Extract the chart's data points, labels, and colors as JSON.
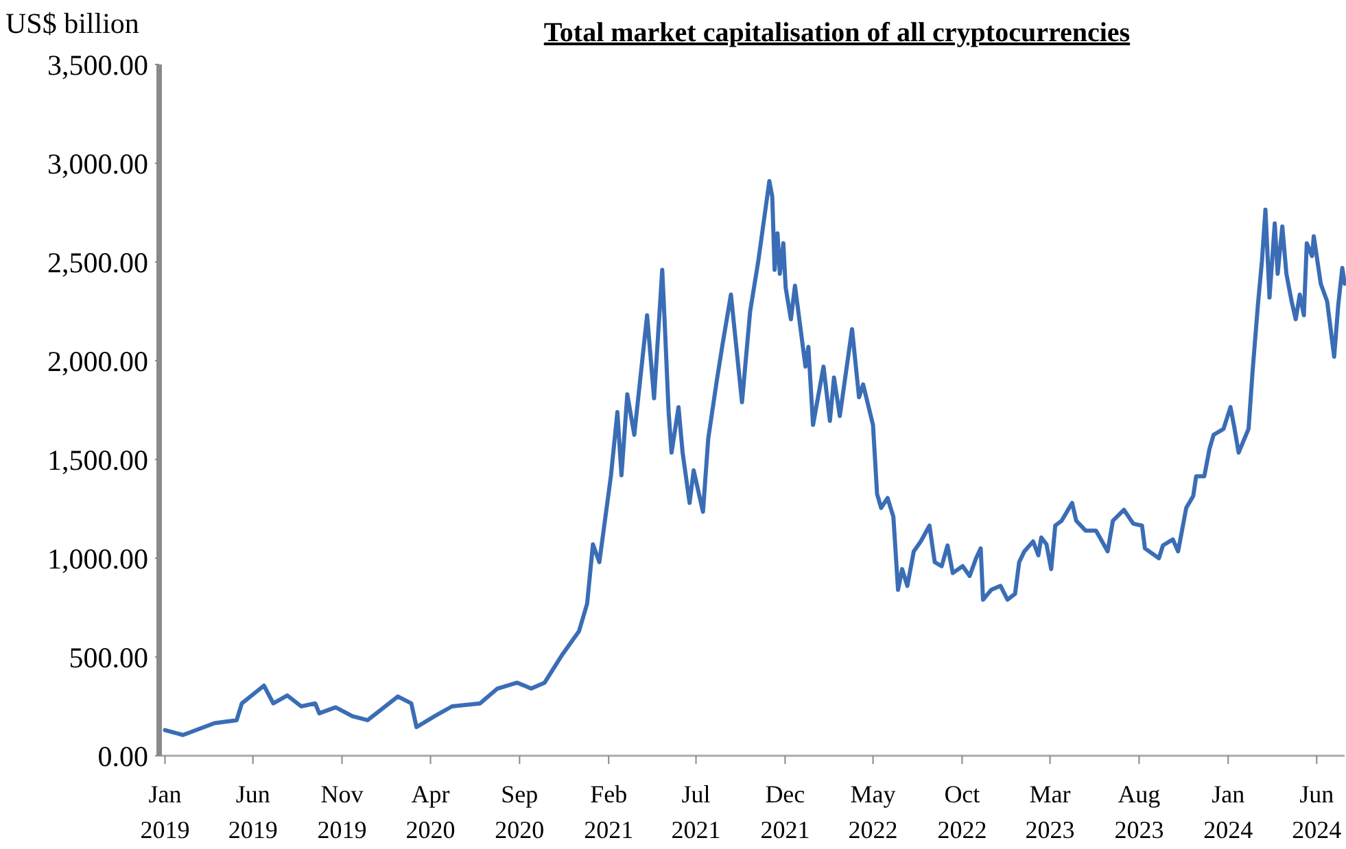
{
  "chart_data": {
    "type": "line",
    "title": "Total market capitalisation of all cryptocurrencies",
    "ylabel": "US$ billion",
    "x": [
      "2019-01-01",
      "2019-02-01",
      "2019-03-27",
      "2019-05-04",
      "2019-05-13",
      "2019-06-20",
      "2019-07-06",
      "2019-07-30",
      "2019-08-23",
      "2019-09-16",
      "2019-09-23",
      "2019-10-21",
      "2019-11-19",
      "2019-12-15",
      "2020-02-05",
      "2020-02-28",
      "2020-03-08",
      "2020-04-08",
      "2020-05-08",
      "2020-06-25",
      "2020-07-25",
      "2020-08-28",
      "2020-09-21",
      "2020-10-14",
      "2020-11-14",
      "2020-12-12",
      "2020-12-26",
      "2021-01-05",
      "2021-01-16",
      "2021-02-05",
      "2021-02-16",
      "2021-02-23",
      "2021-03-05",
      "2021-03-17",
      "2021-04-08",
      "2021-04-20",
      "2021-05-04",
      "2021-05-08",
      "2021-05-15",
      "2021-05-20",
      "2021-06-01",
      "2021-06-08",
      "2021-06-20",
      "2021-06-27",
      "2021-07-13",
      "2021-07-22",
      "2021-08-06",
      "2021-08-16",
      "2021-08-30",
      "2021-09-18",
      "2021-10-02",
      "2021-10-16",
      "2021-11-04",
      "2021-11-09",
      "2021-11-13",
      "2021-11-18",
      "2021-11-22",
      "2021-11-28",
      "2021-12-02",
      "2021-12-11",
      "2021-12-18",
      "2022-01-05",
      "2022-01-10",
      "2022-01-18",
      "2022-02-05",
      "2022-02-16",
      "2022-02-23",
      "2022-03-05",
      "2022-03-26",
      "2022-04-07",
      "2022-04-14",
      "2022-05-01",
      "2022-05-08",
      "2022-05-15",
      "2022-05-26",
      "2022-06-05",
      "2022-06-13",
      "2022-06-20",
      "2022-06-29",
      "2022-07-10",
      "2022-07-22",
      "2022-08-06",
      "2022-08-15",
      "2022-08-27",
      "2022-09-06",
      "2022-09-15",
      "2022-10-02",
      "2022-10-14",
      "2022-10-25",
      "2022-11-02",
      "2022-11-06",
      "2022-11-20",
      "2022-12-06",
      "2022-12-18",
      "2022-12-31",
      "2023-01-07",
      "2023-01-16",
      "2023-01-31",
      "2023-02-09",
      "2023-02-14",
      "2023-02-23",
      "2023-03-03",
      "2023-03-10",
      "2023-03-21",
      "2023-04-08",
      "2023-04-15",
      "2023-05-01",
      "2023-05-19",
      "2023-06-08",
      "2023-06-17",
      "2023-07-06",
      "2023-07-22",
      "2023-08-06",
      "2023-08-11",
      "2023-09-04",
      "2023-09-11",
      "2023-09-28",
      "2023-10-07",
      "2023-10-21",
      "2023-11-02",
      "2023-11-07",
      "2023-11-21",
      "2023-11-30",
      "2023-12-07",
      "2023-12-24",
      "2024-01-05",
      "2024-01-12",
      "2024-01-19",
      "2024-02-05",
      "2024-02-12",
      "2024-02-21",
      "2024-02-28",
      "2024-03-05",
      "2024-03-12",
      "2024-03-21",
      "2024-03-26",
      "2024-04-03",
      "2024-04-10",
      "2024-04-19",
      "2024-04-26",
      "2024-05-03",
      "2024-05-10",
      "2024-05-15",
      "2024-05-24",
      "2024-05-27",
      "2024-06-08",
      "2024-06-19",
      "2024-07-01",
      "2024-07-08",
      "2024-07-15",
      "2024-07-19"
    ],
    "series": [
      {
        "color": "#3a6db5",
        "values": [
          130,
          105,
          165,
          180,
          265,
          355,
          265,
          305,
          250,
          265,
          215,
          245,
          200,
          180,
          300,
          265,
          145,
          200,
          250,
          265,
          340,
          370,
          340,
          370,
          515,
          630,
          770,
          1070,
          980,
          1420,
          1740,
          1420,
          1830,
          1625,
          2230,
          1810,
          2460,
          2210,
          1740,
          1535,
          1765,
          1535,
          1280,
          1445,
          1235,
          1605,
          1905,
          2090,
          2335,
          1790,
          2250,
          2505,
          2910,
          2830,
          2460,
          2645,
          2440,
          2595,
          2370,
          2210,
          2380,
          1970,
          2070,
          1675,
          1970,
          1695,
          1915,
          1720,
          2160,
          1815,
          1880,
          1675,
          1325,
          1255,
          1305,
          1210,
          840,
          945,
          860,
          1035,
          1085,
          1165,
          980,
          960,
          1065,
          925,
          960,
          910,
          1000,
          1050,
          790,
          840,
          860,
          790,
          820,
          980,
          1035,
          1085,
          1015,
          1105,
          1070,
          945,
          1165,
          1190,
          1280,
          1190,
          1140,
          1140,
          1035,
          1190,
          1245,
          1175,
          1165,
          1050,
          1000,
          1065,
          1095,
          1035,
          1255,
          1315,
          1415,
          1415,
          1555,
          1625,
          1655,
          1765,
          1655,
          1535,
          1655,
          1950,
          2280,
          2505,
          2765,
          2320,
          2695,
          2440,
          2680,
          2440,
          2300,
          2210,
          2335,
          2230,
          2595,
          2530,
          2630,
          2390,
          2300,
          2020,
          2280,
          2470,
          2390
        ]
      }
    ],
    "xlim": [
      "2018-12-22",
      "2024-07-19"
    ],
    "xticks": [
      {
        "value": "2019-01",
        "label": "Jan 2019"
      },
      {
        "value": "2019-06",
        "label": "Jun 2019"
      },
      {
        "value": "2019-11",
        "label": "Nov 2019"
      },
      {
        "value": "2020-04",
        "label": "Apr 2020"
      },
      {
        "value": "2020-09",
        "label": "Sep 2020"
      },
      {
        "value": "2021-02",
        "label": "Feb 2021"
      },
      {
        "value": "2021-07",
        "label": "Jul 2021"
      },
      {
        "value": "2021-12",
        "label": "Dec 2021"
      },
      {
        "value": "2022-05",
        "label": "May 2022"
      },
      {
        "value": "2022-10",
        "label": "Oct 2022"
      },
      {
        "value": "2023-03",
        "label": "Mar 2023"
      },
      {
        "value": "2023-08",
        "label": "Aug 2023"
      },
      {
        "value": "2024-01",
        "label": "Jan 2024"
      },
      {
        "value": "2024-06",
        "label": "Jun 2024"
      }
    ],
    "ylim": [
      0,
      3500
    ],
    "yticks": [
      {
        "value": 0,
        "label": "0.00"
      },
      {
        "value": 500,
        "label": "500.00"
      },
      {
        "value": 1000,
        "label": "1,000.00"
      },
      {
        "value": 1500,
        "label": "1,500.00"
      },
      {
        "value": 2000,
        "label": "2,000.00"
      },
      {
        "value": 2500,
        "label": "2,500.00"
      },
      {
        "value": 3000,
        "label": "3,000.00"
      },
      {
        "value": 3500,
        "label": "3,500.00"
      }
    ],
    "grid": false,
    "marker": "none",
    "line_style": "solid"
  }
}
